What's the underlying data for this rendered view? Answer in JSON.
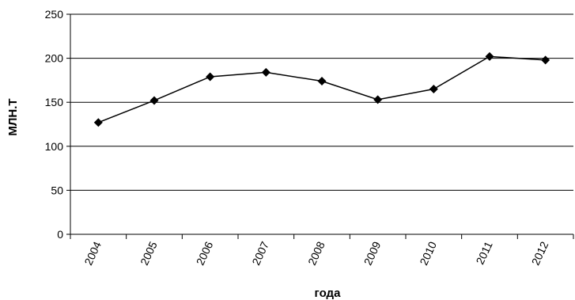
{
  "chart_data": {
    "type": "line",
    "title": "",
    "xlabel": "года",
    "ylabel": "МЛН.Т",
    "x": [
      "2004",
      "2005",
      "2006",
      "2007",
      "2008",
      "2009",
      "2010",
      "2011",
      "2012"
    ],
    "series": [
      {
        "values": [
          127,
          152,
          179,
          184,
          174,
          153,
          165,
          202,
          198
        ]
      }
    ],
    "ylim": [
      0,
      250
    ],
    "yticks": [
      0,
      50,
      100,
      150,
      200,
      250
    ],
    "grid": true,
    "legend": "none",
    "line_color": "#000000",
    "marker": "diamond-icon"
  }
}
